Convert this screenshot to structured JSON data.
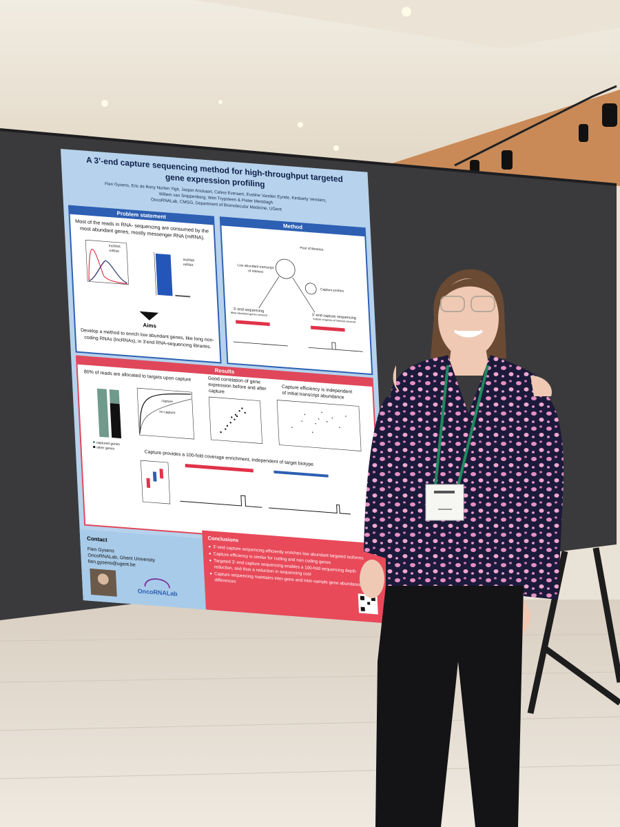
{
  "poster": {
    "title_lines": [
      "A 3’-end capture sequencing method for high-throughput targeted",
      "gene expression profiling"
    ],
    "author_lines": [
      "Fien Gysens, Eric de Bony Nurten Yigit, Jasper Anckaert, Celine Everaert, Eveline Vanden Eynde, Kimberly Verniers,",
      "Willem van Snippenberg, Wim Trypsteen & Pieter Mestdagh",
      "OncoRNALab, CMGG, Department of Biomolecular Medicine, UGent"
    ],
    "problem": {
      "heading": "Problem statement",
      "intro_lines": [
        "Most of the reads in RNA- sequencing are consumed by the",
        "most abundant genes, mostly messenger RNA (mRNA)."
      ],
      "legend": [
        "lncRNA",
        "mRNA"
      ],
      "aims_heading": "Aims",
      "aims_lines": [
        "Develop a method to enrich low abundant genes, like long non-",
        "coding RNAs (lncRNAs), in 3’end RNA-sequencing libraries."
      ]
    },
    "method": {
      "heading": "Method",
      "pool": "Pool of libraries",
      "transcript_lines": [
        "Low abundant transcript",
        "of interest"
      ],
      "probes": "Capture probes",
      "left_title": "3’-end sequencing",
      "left_sub": "Most abundant genes covered",
      "right_title": "3’-end capture sequencing",
      "right_sub": "Subset of genes of interest covered"
    },
    "results": {
      "heading": "Results",
      "reads_title": "80% of reads are allocated to targets upon capture",
      "correlation_lines": [
        "Good correlation of gene",
        "expression before and after",
        "capture"
      ],
      "efficiency_lines": [
        "Capture efficiency is independent",
        "of initial transcript abundance"
      ],
      "coverage_title": "Capture provides a 100-fold coverage enrichment, independent of target biotype",
      "curve_labels": [
        "capture",
        "no capture"
      ],
      "bar_legend": [
        "captured genes",
        "other genes"
      ]
    },
    "contact": {
      "heading": "Contact",
      "lines": [
        "Fien Gysens",
        "OncoRNALab, Ghent University",
        "fien.gysens@ugent.be"
      ],
      "logo": "OncoRNALab"
    },
    "conclusions": {
      "heading": "Conclusions",
      "bullets": [
        [
          "3’-end capture sequencing efficiently enriches low abundant targeted isoforms"
        ],
        [
          "Capture efficiency is similar for coding and non coding genes"
        ],
        [
          "Targeted 3’-end capture sequencing enables a 100-fold sequencing depth",
          "reduction, and thus a reduction in sequencing cost"
        ],
        [
          "Capture sequencing maintains inter-gene and inter-sample gene abundance",
          "differences"
        ]
      ]
    }
  }
}
